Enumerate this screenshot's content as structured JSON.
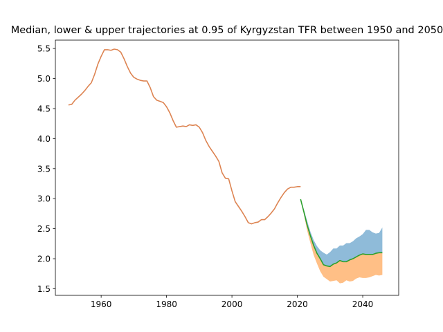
{
  "chart_data": {
    "type": "area",
    "title": "Median, lower & upper trajectories at 0.95 of Kyrgyzstan TFR between 1950 and 2050",
    "xlabel": "",
    "ylabel": "",
    "xlim": [
      1946,
      2051
    ],
    "ylim": [
      1.39,
      5.64
    ],
    "xticks": [
      1960,
      1980,
      2000,
      2020,
      2040
    ],
    "yticks": [
      1.5,
      2.0,
      2.5,
      3.0,
      3.5,
      4.0,
      4.5,
      5.0,
      5.5
    ],
    "grid": false,
    "legend": "none",
    "colors": {
      "historical": "#dd8452",
      "median": "#2ca02c",
      "upper_band": "#1f77b4",
      "lower_band": "#ff7f0e"
    },
    "series": [
      {
        "x": [
          1950,
          1951,
          1952,
          1953,
          1954,
          1955,
          1956,
          1957,
          1958,
          1959,
          1960,
          1961,
          1962,
          1963,
          1964,
          1965,
          1966,
          1967,
          1968,
          1969,
          1970,
          1971,
          1972,
          1973,
          1974,
          1975,
          1976,
          1977,
          1978,
          1979,
          1980,
          1981,
          1982,
          1983,
          1984,
          1985,
          1986,
          1987,
          1988,
          1989,
          1990,
          1991,
          1992,
          1993,
          1994,
          1995,
          1996,
          1997,
          1998,
          1999,
          2000,
          2001,
          2002,
          2003,
          2004,
          2005,
          2006,
          2007,
          2008,
          2009,
          2010,
          2011,
          2012,
          2013,
          2014,
          2015,
          2016,
          2017,
          2018,
          2019,
          2020,
          2021
        ],
        "values": [
          4.56,
          4.57,
          4.64,
          4.69,
          4.74,
          4.8,
          4.87,
          4.93,
          5.07,
          5.24,
          5.37,
          5.48,
          5.48,
          5.47,
          5.49,
          5.48,
          5.44,
          5.33,
          5.2,
          5.09,
          5.02,
          4.99,
          4.97,
          4.96,
          4.96,
          4.85,
          4.7,
          4.64,
          4.62,
          4.6,
          4.53,
          4.43,
          4.3,
          4.19,
          4.2,
          4.21,
          4.2,
          4.23,
          4.22,
          4.23,
          4.19,
          4.1,
          3.97,
          3.87,
          3.79,
          3.71,
          3.62,
          3.43,
          3.34,
          3.33,
          3.13,
          2.95,
          2.87,
          2.79,
          2.7,
          2.6,
          2.58,
          2.6,
          2.61,
          2.65,
          2.65,
          2.7,
          2.76,
          2.83,
          2.93,
          3.02,
          3.1,
          3.16,
          3.19,
          3.19,
          3.2,
          3.2
        ]
      },
      {
        "x": [
          2021,
          2022,
          2023,
          2024,
          2025,
          2026,
          2027,
          2028,
          2029,
          2030,
          2031,
          2032,
          2033,
          2034,
          2035,
          2036,
          2037,
          2038,
          2039,
          2040,
          2041,
          2042,
          2043,
          2044,
          2045,
          2046
        ],
        "values": [
          2.99,
          2.78,
          2.56,
          2.38,
          2.22,
          2.09,
          2.0,
          1.9,
          1.88,
          1.87,
          1.91,
          1.93,
          1.97,
          1.95,
          1.95,
          1.98,
          2.0,
          2.03,
          2.06,
          2.08,
          2.07,
          2.07,
          2.07,
          2.09,
          2.1,
          2.1
        ],
        "lower": [
          2.99,
          2.74,
          2.47,
          2.26,
          2.06,
          1.92,
          1.79,
          1.7,
          1.66,
          1.62,
          1.63,
          1.64,
          1.59,
          1.6,
          1.64,
          1.62,
          1.63,
          1.67,
          1.69,
          1.68,
          1.68,
          1.69,
          1.71,
          1.73,
          1.72,
          1.73
        ],
        "upper": [
          2.99,
          2.82,
          2.63,
          2.45,
          2.31,
          2.21,
          2.14,
          2.1,
          2.07,
          2.11,
          2.17,
          2.17,
          2.22,
          2.22,
          2.26,
          2.26,
          2.29,
          2.34,
          2.37,
          2.41,
          2.48,
          2.48,
          2.44,
          2.42,
          2.43,
          2.52
        ]
      }
    ]
  }
}
